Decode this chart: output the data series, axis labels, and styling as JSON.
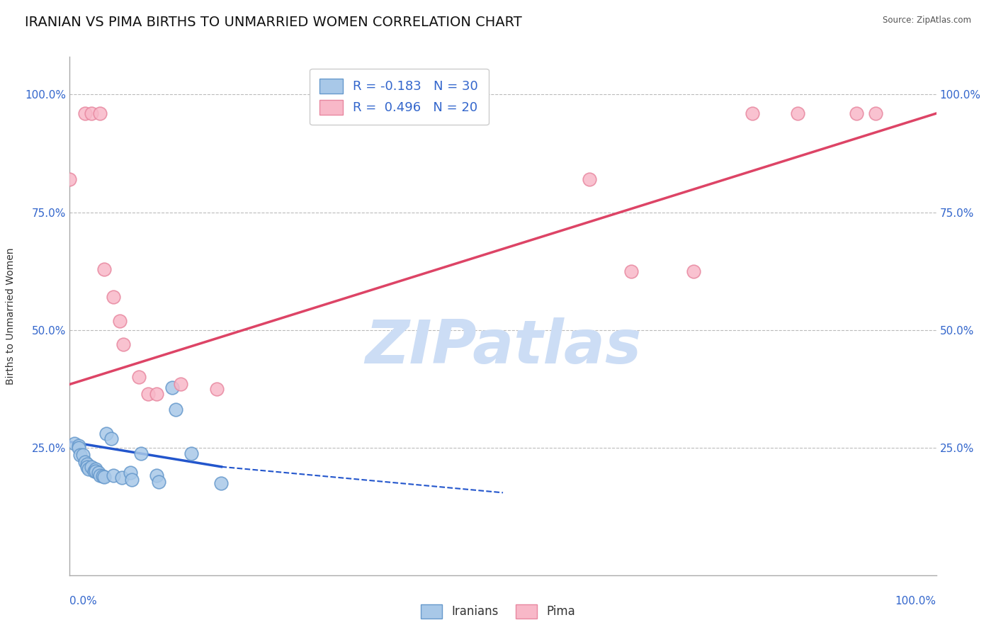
{
  "title": "IRANIAN VS PIMA BIRTHS TO UNMARRIED WOMEN CORRELATION CHART",
  "source": "Source: ZipAtlas.com",
  "ylabel": "Births to Unmarried Women",
  "xlim": [
    0.0,
    1.0
  ],
  "ylim": [
    -0.02,
    1.08
  ],
  "yticks": [
    0.0,
    0.25,
    0.5,
    0.75,
    1.0
  ],
  "ytick_labels_left": [
    "",
    "25.0%",
    "50.0%",
    "75.0%",
    "100.0%"
  ],
  "ytick_labels_right": [
    "",
    "25.0%",
    "50.0%",
    "75.0%",
    "100.0%"
  ],
  "legend_entries": [
    {
      "label": "R = -0.183   N = 30"
    },
    {
      "label": "R =  0.496   N = 20"
    }
  ],
  "iranian_points": [
    [
      0.005,
      0.26
    ],
    [
      0.01,
      0.255
    ],
    [
      0.01,
      0.25
    ],
    [
      0.012,
      0.235
    ],
    [
      0.015,
      0.235
    ],
    [
      0.018,
      0.22
    ],
    [
      0.02,
      0.215
    ],
    [
      0.02,
      0.21
    ],
    [
      0.022,
      0.205
    ],
    [
      0.025,
      0.21
    ],
    [
      0.028,
      0.2
    ],
    [
      0.03,
      0.205
    ],
    [
      0.03,
      0.2
    ],
    [
      0.033,
      0.198
    ],
    [
      0.035,
      0.192
    ],
    [
      0.038,
      0.19
    ],
    [
      0.04,
      0.188
    ],
    [
      0.042,
      0.28
    ],
    [
      0.048,
      0.27
    ],
    [
      0.05,
      0.192
    ],
    [
      0.06,
      0.187
    ],
    [
      0.07,
      0.198
    ],
    [
      0.072,
      0.183
    ],
    [
      0.082,
      0.238
    ],
    [
      0.1,
      0.192
    ],
    [
      0.103,
      0.178
    ],
    [
      0.118,
      0.378
    ],
    [
      0.122,
      0.332
    ],
    [
      0.14,
      0.238
    ],
    [
      0.175,
      0.175
    ]
  ],
  "pima_points": [
    [
      0.0,
      0.82
    ],
    [
      0.018,
      0.96
    ],
    [
      0.025,
      0.96
    ],
    [
      0.035,
      0.96
    ],
    [
      0.04,
      0.63
    ],
    [
      0.05,
      0.57
    ],
    [
      0.058,
      0.52
    ],
    [
      0.062,
      0.47
    ],
    [
      0.08,
      0.4
    ],
    [
      0.09,
      0.365
    ],
    [
      0.1,
      0.365
    ],
    [
      0.128,
      0.385
    ],
    [
      0.17,
      0.375
    ],
    [
      0.6,
      0.82
    ],
    [
      0.648,
      0.625
    ],
    [
      0.72,
      0.625
    ],
    [
      0.788,
      0.96
    ],
    [
      0.84,
      0.96
    ],
    [
      0.908,
      0.96
    ],
    [
      0.93,
      0.96
    ]
  ],
  "blue_line_solid": [
    [
      0.0,
      0.263
    ],
    [
      0.175,
      0.21
    ]
  ],
  "blue_line_dash": [
    [
      0.175,
      0.21
    ],
    [
      0.5,
      0.155
    ]
  ],
  "pink_line": [
    [
      0.0,
      0.385
    ],
    [
      1.0,
      0.96
    ]
  ],
  "blue_line_color": "#2255cc",
  "pink_line_color": "#dd4466",
  "blue_marker_facecolor": "#a8c8e8",
  "blue_marker_edgecolor": "#6699cc",
  "pink_marker_facecolor": "#f8b8c8",
  "pink_marker_edgecolor": "#e888a0",
  "background_color": "#ffffff",
  "grid_color": "#bbbbbb",
  "watermark_color": "#ccddf5",
  "title_fontsize": 14,
  "axis_label_fontsize": 10,
  "tick_fontsize": 11,
  "legend_fontsize": 13
}
